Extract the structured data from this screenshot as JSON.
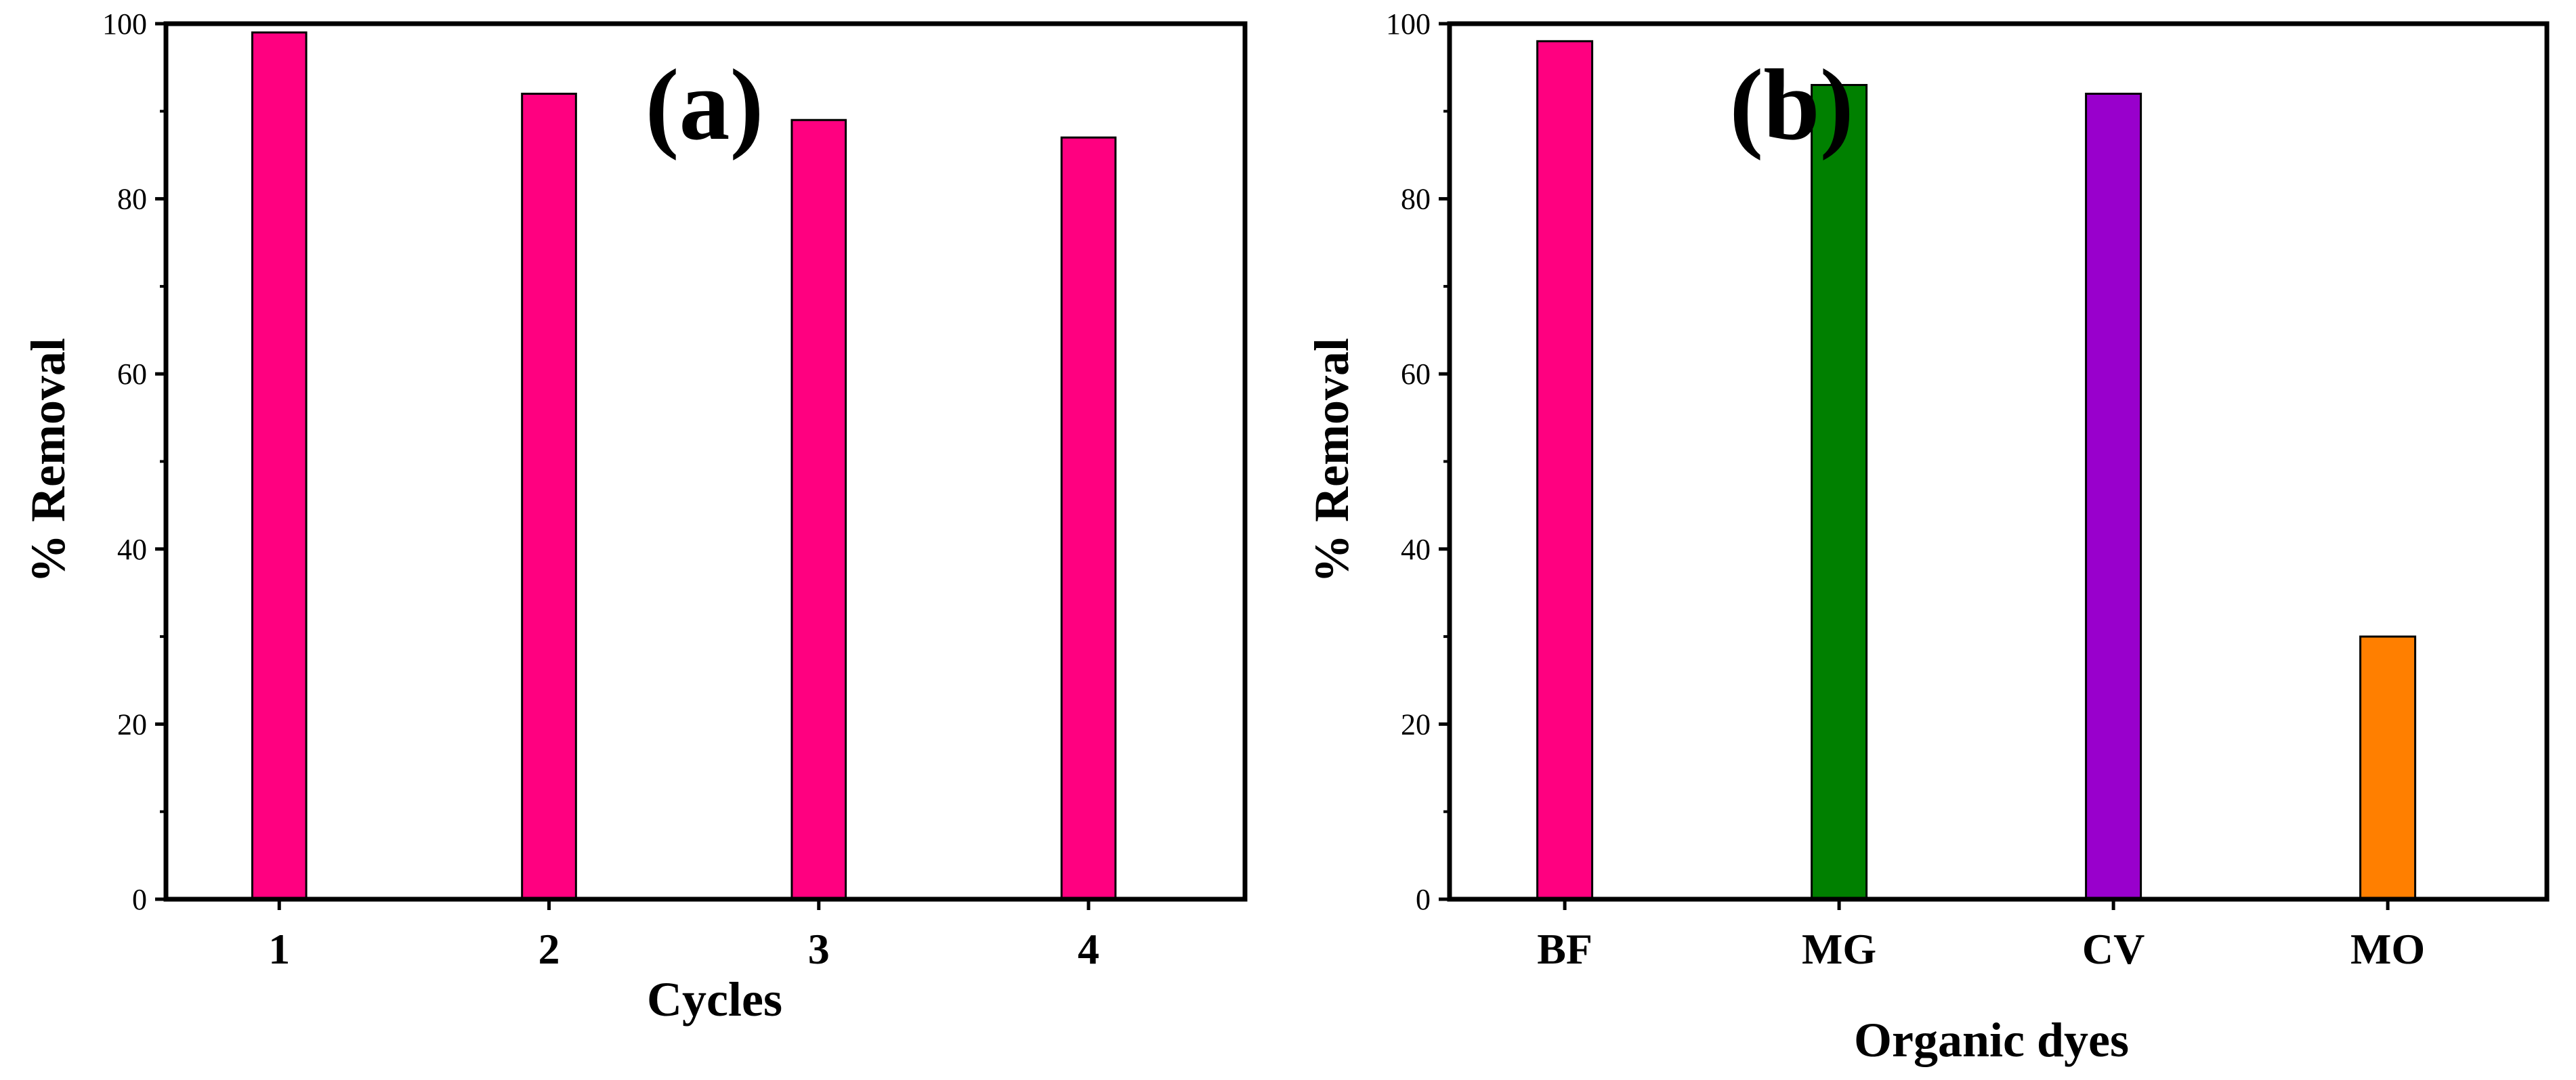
{
  "chart_data": [
    {
      "type": "bar",
      "panel_label": "(a)",
      "categories": [
        "1",
        "2",
        "3",
        "4"
      ],
      "values": [
        99,
        92,
        89,
        87
      ],
      "colors": [
        "#ff0080",
        "#ff0080",
        "#ff0080",
        "#ff0080"
      ],
      "xlabel": "Cycles",
      "ylabel": "% Removal",
      "ylim": [
        0,
        100
      ],
      "yticks": [
        "0",
        "20",
        "40",
        "60",
        "80",
        "100"
      ],
      "grid": false,
      "legend": "none"
    },
    {
      "type": "bar",
      "panel_label": "(b)",
      "categories": [
        "BF",
        "MG",
        "CV",
        "MO"
      ],
      "values": [
        98,
        93,
        92,
        30
      ],
      "colors": [
        "#ff0080",
        "#008000",
        "#9900cc",
        "#ff7f00"
      ],
      "xlabel": "Organic dyes",
      "ylabel": "% Removal",
      "ylim": [
        0,
        100
      ],
      "yticks": [
        "0",
        "20",
        "40",
        "60",
        "80",
        "100"
      ],
      "grid": false,
      "legend": "none"
    }
  ]
}
